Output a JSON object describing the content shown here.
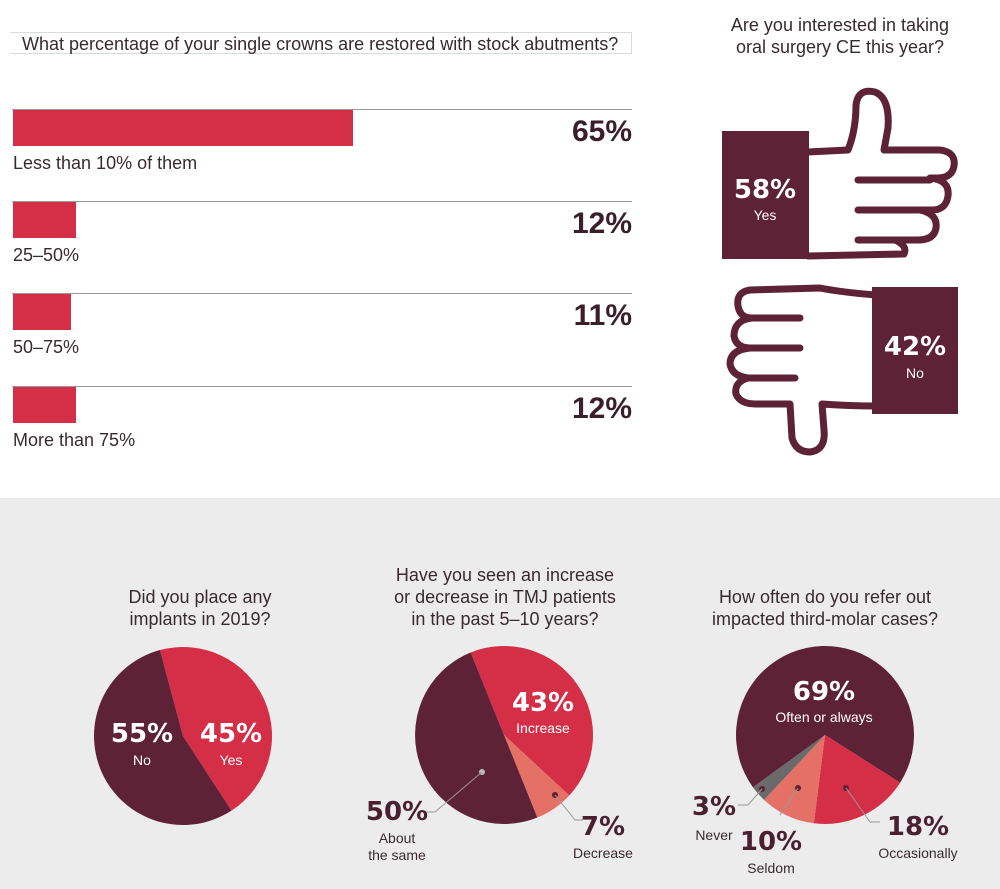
{
  "bar_section": {
    "question": "What percentage of your single crowns are restored with stock abutments?"
  },
  "thumbs_section": {
    "question_line1": "Are you interested in taking",
    "question_line2": "oral surgery CE this year?"
  },
  "pie_questions": {
    "implants": [
      "Did you place any",
      "implants in 2019?"
    ],
    "tmj": [
      "Have you seen an increase",
      "or decrease in TMJ patients",
      "in the past 5–10 years?"
    ],
    "molar": [
      "How often do you refer out",
      "impacted third-molar cases?"
    ]
  },
  "colors": {
    "dark": "#5e2237",
    "red": "#d52e47",
    "salmon": "#e57066",
    "gray": "#6a6a6a",
    "bg": "#ececec"
  },
  "icons": [
    "thumbs-up-icon",
    "thumbs-down-icon"
  ],
  "chart_data": [
    {
      "type": "bar",
      "categories": [
        "Less than 10% of them",
        "25–50%",
        "50–75%",
        "More than 75%"
      ],
      "values": [
        65,
        12,
        11,
        12
      ],
      "value_labels": [
        "65%",
        "12%",
        "11%",
        "12%"
      ],
      "title": "What percentage of your single crowns are restored with stock abutments?"
    },
    {
      "type": "pie",
      "title": "Are you interested in taking oral surgery CE this year?",
      "labels": [
        "Yes",
        "No"
      ],
      "values": [
        58,
        42
      ],
      "value_labels": [
        "58%",
        "42%"
      ]
    },
    {
      "type": "pie",
      "title": "Did you place any implants in 2019?",
      "labels": [
        "No",
        "Yes"
      ],
      "values": [
        55,
        45
      ],
      "value_labels": [
        "55%",
        "45%"
      ]
    },
    {
      "type": "pie",
      "title": "Have you seen an increase or decrease in TMJ patients in the past 5–10 years?",
      "labels": [
        "Increase",
        "Decrease",
        "About the same"
      ],
      "label_lines": [
        [
          "Increase"
        ],
        [
          "Decrease"
        ],
        [
          "About",
          "the same"
        ]
      ],
      "values": [
        43,
        7,
        50
      ],
      "value_labels": [
        "43%",
        "7%",
        "50%"
      ]
    },
    {
      "type": "pie",
      "title": "How often do you refer out impacted third-molar cases?",
      "labels": [
        "Often or always",
        "Occasionally",
        "Seldom",
        "Never"
      ],
      "values": [
        69,
        18,
        10,
        3
      ],
      "value_labels": [
        "69%",
        "18%",
        "10%",
        "3%"
      ]
    }
  ]
}
